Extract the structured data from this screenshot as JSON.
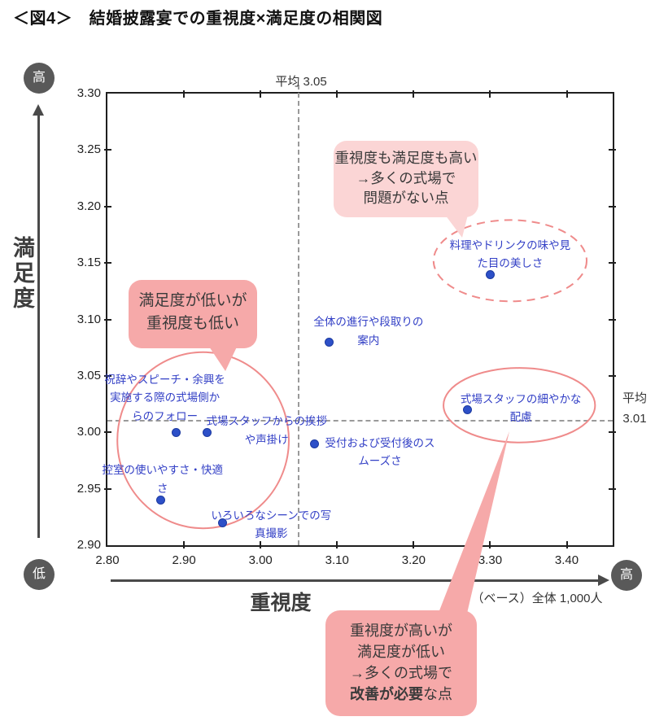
{
  "title": "＜図4＞　結婚披露宴での重視度×満足度の相関図",
  "colors": {
    "dot": "#2d50c8",
    "dot_border": "#1c3aa0",
    "point_label_blue": "#3340c6",
    "callout_pink_light": "#fbd5d5",
    "callout_pink": "#f6a9a9",
    "ellipse_stroke": "#ef8b8b",
    "avg_line_gray": "#9a9a9a",
    "axis_circle_gray": "#595959"
  },
  "chart_data": {
    "type": "scatter",
    "xlabel": "重視度",
    "ylabel": "満足度",
    "x_high_label": "高",
    "y_high_label": "高",
    "y_low_label": "低",
    "x_range": [
      2.8,
      3.46
    ],
    "y_range": [
      2.9,
      3.3
    ],
    "x_ticks": [
      "2.80",
      "2.90",
      "3.00",
      "3.10",
      "3.20",
      "3.30",
      "3.40"
    ],
    "y_ticks": [
      "3.30",
      "3.25",
      "3.20",
      "3.15",
      "3.10",
      "3.05",
      "3.00",
      "2.95",
      "2.90"
    ],
    "grid": false,
    "avg_x": {
      "value": 3.05,
      "label": "平均 3.05"
    },
    "avg_y": {
      "value": 3.01,
      "label": "平均\n3.01"
    },
    "base_note": "（ベース）全体 1,000人",
    "points": [
      {
        "name": "料理やドリンクの味や見た目の美しさ",
        "x": 3.3,
        "y": 3.14,
        "label": "料理やドリンクの味や見\nた目の美しさ",
        "label_x": 3.326,
        "label_y": 3.157,
        "label_w": 200
      },
      {
        "name": "全体の進行や段取りの案内",
        "x": 3.09,
        "y": 3.08,
        "label": "全体の進行や段取りの\n案内",
        "label_x": 3.141,
        "label_y": 3.089,
        "label_w": 180
      },
      {
        "name": "式場スタッフの細やかな配慮",
        "x": 3.27,
        "y": 3.02,
        "label": "式場スタッフの細やかな\n配慮",
        "label_x": 3.34,
        "label_y": 3.021,
        "label_w": 190
      },
      {
        "name": "受付および受付後のスムーズさ",
        "x": 3.07,
        "y": 2.99,
        "label": "受付および受付後のス\nムーズさ",
        "label_x": 3.156,
        "label_y": 2.982,
        "label_w": 185
      },
      {
        "name": "祝辞やスピーチ・余興を実施する際の式場側からのフォロー",
        "x": 2.89,
        "y": 3.0,
        "label": "祝辞やスピーチ・余興を\n実施する際の式場側か\nらのフォロー",
        "label_x": 2.875,
        "label_y": 3.03,
        "label_w": 185
      },
      {
        "name": "式場スタッフからの挨拶や声掛け",
        "x": 2.93,
        "y": 3.0,
        "label": "式場スタッフからの挨拶\nや声掛け",
        "label_x": 3.008,
        "label_y": 3.001,
        "label_w": 180
      },
      {
        "name": "控室の使いやすさ・快適さ",
        "x": 2.87,
        "y": 2.94,
        "label": "控室の使いやすさ・快適\nさ",
        "label_x": 2.872,
        "label_y": 2.958,
        "label_w": 170
      },
      {
        "name": "いろいろなシーンでの写真撮影",
        "x": 2.95,
        "y": 2.92,
        "label": "いろいろなシーンでの写\n真撮影",
        "label_x": 3.014,
        "label_y": 2.918,
        "label_w": 170
      }
    ],
    "ellipses": [
      {
        "style": "dashed",
        "cx": 3.326,
        "cy": 3.152,
        "rx": 0.1,
        "ry": 0.036
      },
      {
        "style": "solid",
        "cx": 2.925,
        "cy": 2.993,
        "rx": 0.112,
        "ry": 0.078
      },
      {
        "style": "solid",
        "cx": 3.338,
        "cy": 3.024,
        "rx": 0.099,
        "ry": 0.033
      }
    ]
  },
  "callouts": {
    "top": {
      "lines": [
        "重視度も満足度も高い",
        "→多くの式場で",
        "問題がない点"
      ]
    },
    "left": {
      "lines": [
        "満足度が低いが",
        "重視度も低い"
      ]
    },
    "bottom": {
      "lines": [
        "重視度が高いが",
        "満足度が低い",
        "→多くの式場で"
      ],
      "last_line_bold": "改善が必要",
      "last_line_rest": "な点"
    }
  }
}
